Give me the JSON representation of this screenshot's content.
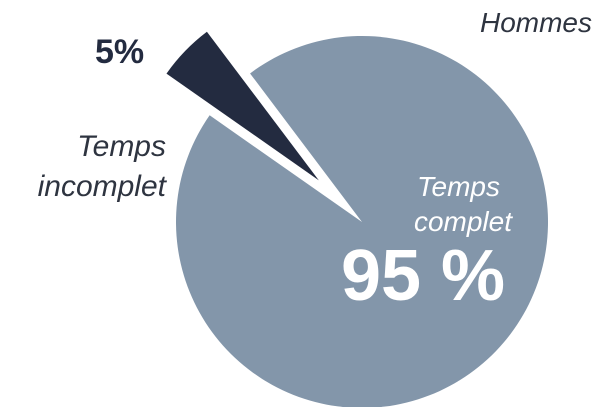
{
  "chart_data": {
    "type": "pie",
    "title": "Hommes",
    "slices": [
      {
        "label_line1": "Temps",
        "label_line2": "complet",
        "value": 95,
        "value_label": "95 %",
        "color": "#8396aa"
      },
      {
        "label_line1": "Temps",
        "label_line2": "incomplet",
        "value": 5,
        "value_label": "5%",
        "color": "#232b40"
      }
    ],
    "exploded_slice": "incomplet",
    "legend": "none"
  }
}
